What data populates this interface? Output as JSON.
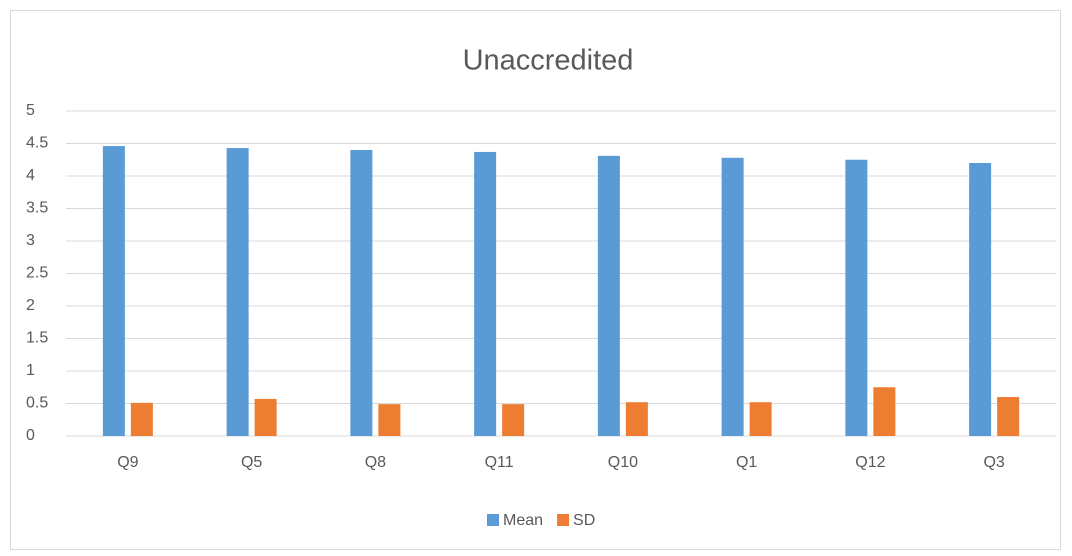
{
  "chart_data": {
    "type": "bar",
    "title": "Unaccredited",
    "categories": [
      "Q9",
      "Q5",
      "Q8",
      "Q11",
      "Q10",
      "Q1",
      "Q12",
      "Q3"
    ],
    "series": [
      {
        "name": "Mean",
        "color": "#5b9bd5",
        "values": [
          4.46,
          4.43,
          4.4,
          4.37,
          4.31,
          4.28,
          4.25,
          4.2
        ]
      },
      {
        "name": "SD",
        "color": "#ed7d31",
        "values": [
          0.51,
          0.57,
          0.49,
          0.49,
          0.52,
          0.52,
          0.75,
          0.6
        ]
      }
    ],
    "ylim": [
      0,
      5
    ],
    "yticks": [
      0,
      0.5,
      1,
      1.5,
      2,
      2.5,
      3,
      3.5,
      4,
      4.5,
      5
    ],
    "grid": true,
    "legend": "bottom"
  }
}
